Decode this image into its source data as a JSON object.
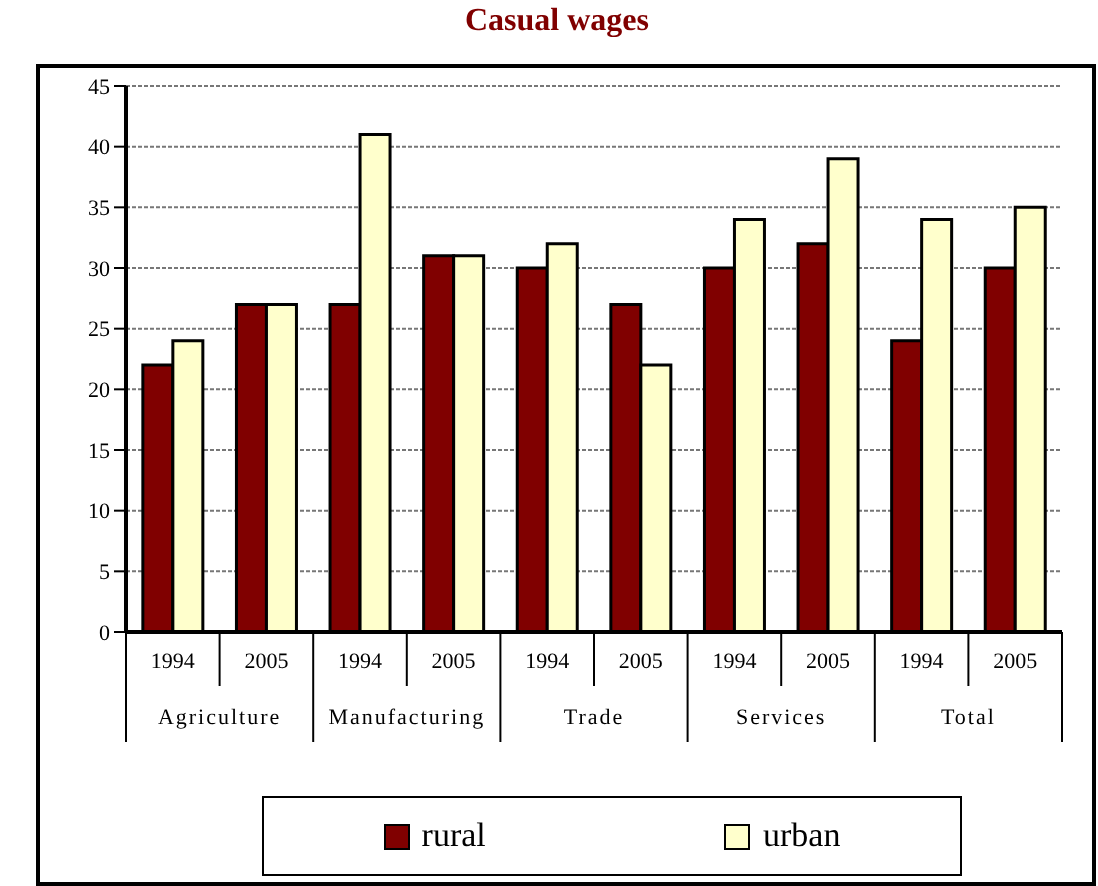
{
  "chart_data": {
    "type": "bar",
    "title": "Casual wages",
    "categories": [
      "1994",
      "2005",
      "1994",
      "2005",
      "1994",
      "2005",
      "1994",
      "2005",
      "1994",
      "2005"
    ],
    "annotations": [
      "Agriculture",
      "Manufacturing",
      "Trade",
      "Services",
      "Total"
    ],
    "series": [
      {
        "name": "rural",
        "color": "#800000",
        "values": [
          22,
          27,
          27,
          31,
          30,
          27,
          30,
          32,
          24,
          30
        ]
      },
      {
        "name": "urban",
        "color": "#ffffcc",
        "values": [
          24,
          27,
          41,
          31,
          32,
          22,
          34,
          39,
          34,
          35
        ]
      }
    ],
    "ylim": [
      0,
      45
    ],
    "yticks": [
      0,
      5,
      10,
      15,
      20,
      25,
      30,
      35,
      40,
      45
    ],
    "grid": "y",
    "legend": "bottom"
  }
}
